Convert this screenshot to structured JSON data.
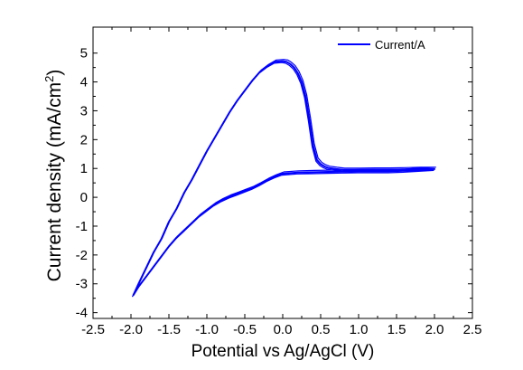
{
  "chart_data": {
    "type": "line",
    "xlabel": "Potential vs Ag/AgCl (V)",
    "ylabel_main": "Current density (mA/cm",
    "ylabel_sup": "2",
    "ylabel_close": ")",
    "xlim": [
      -2.5,
      2.5
    ],
    "ylim": [
      -4.2,
      5.9
    ],
    "x_ticks": [
      -2.5,
      -2.0,
      -1.5,
      -1.0,
      -0.5,
      0.0,
      0.5,
      1.0,
      1.5,
      2.0,
      2.5
    ],
    "x_tick_labels": [
      "-2.5",
      "-2.0",
      "-1.5",
      "-1.0",
      "-0.5",
      "0.0",
      "0.5",
      "1.0",
      "1.5",
      "2.0",
      "2.5"
    ],
    "y_ticks": [
      -4,
      -3,
      -2,
      -1,
      0,
      1,
      2,
      3,
      4,
      5
    ],
    "y_tick_labels": [
      "-4",
      "-3",
      "-2",
      "-1",
      "0",
      "1",
      "2",
      "3",
      "4",
      "5"
    ],
    "grid": false,
    "legend_position": "top-right",
    "series_color": "#0000ff",
    "series": [
      {
        "name": "Current/A",
        "color": "#0000ff",
        "x": [
          -1.97,
          -1.9,
          -1.8,
          -1.7,
          -1.6,
          -1.5,
          -1.4,
          -1.3,
          -1.2,
          -1.1,
          -1.0,
          -0.9,
          -0.8,
          -0.7,
          -0.6,
          -0.5,
          -0.4,
          -0.3,
          -0.2,
          -0.1,
          0.0,
          0.05,
          0.1,
          0.15,
          0.2,
          0.25,
          0.3,
          0.35,
          0.4,
          0.45,
          0.5,
          0.55,
          0.6,
          0.7,
          0.8,
          0.9,
          1.0,
          1.2,
          1.4,
          1.6,
          1.8,
          2.0,
          1.8,
          1.6,
          1.4,
          1.2,
          1.0,
          0.8,
          0.6,
          0.4,
          0.2,
          0.0,
          -0.1,
          -0.2,
          -0.3,
          -0.4,
          -0.5,
          -0.6,
          -0.7,
          -0.8,
          -0.9,
          -1.0,
          -1.1,
          -1.2,
          -1.3,
          -1.4,
          -1.5,
          -1.6,
          -1.7,
          -1.8,
          -1.9,
          -1.97
        ],
        "y": [
          -3.4,
          -3.0,
          -2.45,
          -1.9,
          -1.45,
          -0.85,
          -0.4,
          0.15,
          0.6,
          1.1,
          1.6,
          2.05,
          2.5,
          2.95,
          3.35,
          3.7,
          4.05,
          4.35,
          4.55,
          4.7,
          4.72,
          4.7,
          4.62,
          4.5,
          4.3,
          4.0,
          3.5,
          2.7,
          1.8,
          1.3,
          1.15,
          1.07,
          1.02,
          0.98,
          0.95,
          0.95,
          0.95,
          0.96,
          0.96,
          0.97,
          0.98,
          0.98,
          0.95,
          0.92,
          0.9,
          0.9,
          0.9,
          0.89,
          0.88,
          0.87,
          0.86,
          0.82,
          0.72,
          0.6,
          0.45,
          0.32,
          0.22,
          0.12,
          0.02,
          -0.1,
          -0.25,
          -0.45,
          -0.65,
          -0.9,
          -1.15,
          -1.4,
          -1.7,
          -2.05,
          -2.4,
          -2.75,
          -3.1,
          -3.4
        ]
      }
    ]
  }
}
